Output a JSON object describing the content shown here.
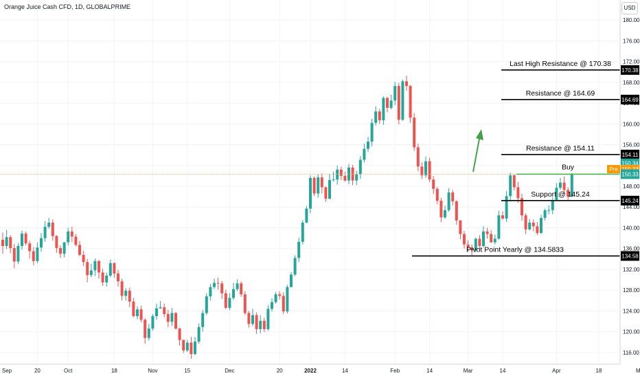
{
  "title": "Orange Juice Cash CFD, 1D, GLOBALPRIME",
  "currency": "USD",
  "colors": {
    "up": "#26a69a",
    "down": "#ef5350",
    "grid": "#f0f3fa",
    "axis_text": "#131722",
    "price_line": "#f7b27a",
    "buy_line": "#4caf50",
    "arrow": "#43a047",
    "pre_badge": "#ff9800",
    "last_badge": "#26a69a"
  },
  "chart_data": {
    "type": "candlestick",
    "ylim": [
      114.0,
      182.0
    ],
    "x_ticks": [
      {
        "label": "Sep",
        "index": -16
      },
      {
        "label": "20",
        "index": 9
      },
      {
        "label": "Oct",
        "index": 17
      },
      {
        "label": "18",
        "index": 29
      },
      {
        "label": "Nov",
        "index": 39
      },
      {
        "label": "15",
        "index": 48
      },
      {
        "label": "Dec",
        "index": 59
      },
      {
        "label": "20",
        "index": 72
      },
      {
        "label": "2022",
        "index": 80
      },
      {
        "label": "14",
        "index": 89
      },
      {
        "label": "Feb",
        "index": 102
      },
      {
        "label": "14",
        "index": 111
      },
      {
        "label": "Mar",
        "index": 121
      },
      {
        "label": "14",
        "index": 130
      },
      {
        "label": "Apr",
        "index": 144
      },
      {
        "label": "18",
        "index": 155
      },
      {
        "label": "May",
        "index": 166
      }
    ],
    "y_ticks": [
      "116.00",
      "120.00",
      "124.00",
      "128.00",
      "132.00",
      "136.00",
      "140.00",
      "144.00",
      "148.00",
      "152.00",
      "156.00",
      "160.00",
      "164.00",
      "168.00",
      "172.00",
      "176.00",
      "180.00"
    ],
    "candles": [
      [
        137.7,
        136.5,
        139.1,
        135.0
      ],
      [
        136.5,
        138.2,
        139.6,
        135.9
      ],
      [
        138.2,
        136.1,
        138.6,
        135.1
      ],
      [
        136.1,
        133.5,
        136.9,
        132.2
      ],
      [
        133.5,
        136.5,
        137.1,
        133.0
      ],
      [
        136.5,
        138.9,
        139.5,
        135.8
      ],
      [
        138.9,
        137.0,
        139.3,
        136.6
      ],
      [
        137.0,
        135.5,
        137.5,
        134.1
      ],
      [
        135.5,
        133.6,
        136.3,
        132.8
      ],
      [
        133.6,
        136.2,
        137.2,
        133.2
      ],
      [
        136.2,
        138.0,
        139.0,
        135.4
      ],
      [
        138.0,
        140.2,
        141.3,
        137.3
      ],
      [
        140.2,
        141.0,
        141.9,
        139.8
      ],
      [
        141.0,
        138.4,
        141.6,
        137.5
      ],
      [
        138.4,
        136.1,
        138.6,
        135.2
      ],
      [
        136.1,
        135.0,
        136.6,
        134.2
      ],
      [
        135.0,
        137.2,
        137.3,
        134.3
      ],
      [
        137.2,
        139.3,
        140.0,
        136.6
      ],
      [
        139.3,
        138.3,
        140.2,
        137.3
      ],
      [
        138.3,
        136.7,
        138.8,
        136.4
      ],
      [
        136.7,
        134.8,
        137.5,
        134.5
      ],
      [
        134.8,
        133.4,
        135.6,
        132.6
      ],
      [
        133.4,
        130.9,
        134.0,
        129.5
      ],
      [
        130.9,
        131.8,
        133.1,
        130.5
      ],
      [
        131.8,
        133.6,
        134.1,
        130.7
      ],
      [
        133.6,
        131.4,
        133.8,
        130.2
      ],
      [
        131.4,
        129.5,
        132.1,
        128.8
      ],
      [
        129.5,
        130.8,
        131.4,
        128.7
      ],
      [
        130.8,
        133.2,
        133.9,
        130.5
      ],
      [
        133.2,
        131.2,
        133.3,
        130.4
      ],
      [
        131.2,
        129.7,
        131.9,
        128.7
      ],
      [
        129.7,
        126.9,
        130.2,
        126.0
      ],
      [
        126.9,
        127.9,
        128.4,
        126.0
      ],
      [
        127.9,
        125.8,
        128.5,
        124.7
      ],
      [
        125.8,
        123.0,
        126.5,
        122.8
      ],
      [
        123.0,
        124.3,
        124.9,
        122.4
      ],
      [
        124.3,
        122.3,
        125.0,
        121.8
      ],
      [
        122.3,
        118.8,
        122.6,
        117.7
      ],
      [
        118.8,
        120.6,
        121.5,
        118.3
      ],
      [
        120.6,
        123.0,
        123.4,
        120.2
      ],
      [
        123.0,
        124.5,
        125.4,
        122.3
      ],
      [
        124.5,
        124.7,
        125.9,
        124.4
      ],
      [
        124.7,
        123.4,
        125.4,
        122.8
      ],
      [
        123.4,
        121.9,
        124.2,
        120.9
      ],
      [
        121.9,
        123.6,
        124.6,
        121.1
      ],
      [
        123.6,
        120.6,
        123.8,
        120.4
      ],
      [
        120.6,
        118.4,
        120.8,
        117.3
      ],
      [
        118.4,
        116.4,
        118.5,
        115.9
      ],
      [
        116.4,
        117.9,
        118.4,
        116.1
      ],
      [
        117.9,
        115.7,
        119.0,
        114.8
      ],
      [
        115.7,
        118.1,
        119.0,
        115.5
      ],
      [
        118.1,
        120.9,
        121.6,
        117.7
      ],
      [
        120.9,
        123.6,
        124.2,
        120.0
      ],
      [
        123.6,
        126.8,
        127.4,
        123.2
      ],
      [
        126.8,
        128.6,
        129.2,
        126.0
      ],
      [
        128.6,
        129.4,
        130.2,
        128.2
      ],
      [
        129.4,
        129.3,
        130.4,
        128.1
      ],
      [
        129.3,
        127.4,
        129.8,
        126.3
      ],
      [
        127.4,
        124.6,
        128.1,
        124.3
      ],
      [
        124.6,
        126.5,
        127.4,
        124.1
      ],
      [
        126.5,
        128.2,
        129.4,
        126.1
      ],
      [
        128.2,
        129.3,
        130.1,
        127.8
      ],
      [
        129.3,
        127.2,
        129.7,
        126.7
      ],
      [
        127.2,
        123.6,
        127.8,
        123.2
      ],
      [
        123.6,
        121.5,
        124.0,
        120.8
      ],
      [
        121.5,
        123.2,
        124.4,
        121.1
      ],
      [
        123.2,
        120.5,
        123.7,
        119.6
      ],
      [
        120.5,
        122.1,
        123.2,
        119.7
      ],
      [
        122.1,
        120.5,
        122.7,
        119.9
      ],
      [
        120.5,
        124.4,
        125.1,
        120.2
      ],
      [
        124.4,
        125.7,
        126.4,
        123.9
      ],
      [
        125.7,
        127.2,
        127.7,
        125.4
      ],
      [
        127.2,
        126.9,
        127.8,
        126.2
      ],
      [
        126.9,
        123.9,
        127.6,
        123.4
      ],
      [
        123.9,
        128.6,
        129.0,
        123.5
      ],
      [
        128.6,
        131.0,
        131.5,
        128.5
      ],
      [
        131.0,
        134.2,
        134.7,
        130.7
      ],
      [
        134.2,
        137.3,
        138.1,
        133.4
      ],
      [
        137.3,
        141.0,
        141.5,
        136.8
      ],
      [
        141.0,
        143.7,
        144.2,
        140.9
      ],
      [
        143.7,
        149.6,
        150.1,
        142.8
      ],
      [
        149.6,
        146.6,
        149.9,
        146.1
      ],
      [
        146.6,
        149.7,
        150.3,
        145.8
      ],
      [
        149.7,
        147.8,
        150.5,
        146.6
      ],
      [
        147.8,
        145.6,
        148.0,
        145.0
      ],
      [
        145.6,
        149.2,
        150.4,
        145.5
      ],
      [
        149.2,
        149.3,
        150.8,
        148.9
      ],
      [
        149.3,
        151.2,
        152.0,
        148.3
      ],
      [
        151.2,
        150.0,
        151.8,
        149.2
      ],
      [
        150.0,
        149.1,
        150.8,
        148.9
      ],
      [
        149.1,
        151.6,
        152.3,
        148.4
      ],
      [
        151.6,
        149.1,
        152.1,
        148.2
      ],
      [
        149.1,
        150.3,
        151.0,
        148.2
      ],
      [
        150.3,
        153.1,
        153.8,
        149.4
      ],
      [
        153.1,
        155.2,
        156.2,
        152.6
      ],
      [
        155.2,
        156.6,
        157.5,
        154.6
      ],
      [
        156.6,
        160.2,
        161.0,
        155.7
      ],
      [
        160.2,
        162.4,
        163.4,
        159.7
      ],
      [
        162.4,
        160.7,
        162.9,
        160.0
      ],
      [
        160.7,
        165.0,
        165.3,
        159.8
      ],
      [
        165.0,
        163.1,
        165.2,
        162.2
      ],
      [
        163.1,
        164.5,
        165.6,
        162.8
      ],
      [
        164.5,
        167.3,
        168.1,
        163.6
      ],
      [
        167.3,
        160.8,
        167.9,
        159.9
      ],
      [
        160.8,
        168.2,
        168.5,
        160.6
      ],
      [
        168.2,
        167.3,
        169.3,
        166.4
      ],
      [
        167.3,
        161.2,
        167.5,
        160.2
      ],
      [
        161.2,
        155.5,
        162.1,
        154.8
      ],
      [
        155.5,
        151.8,
        156.2,
        150.9
      ],
      [
        151.8,
        150.1,
        152.6,
        149.4
      ],
      [
        150.1,
        152.8,
        153.7,
        149.6
      ],
      [
        152.8,
        149.3,
        153.5,
        148.8
      ],
      [
        149.3,
        147.5,
        150.0,
        146.5
      ],
      [
        147.5,
        145.2,
        147.9,
        144.5
      ],
      [
        145.2,
        142.0,
        145.8,
        141.1
      ],
      [
        142.0,
        143.4,
        144.3,
        141.7
      ],
      [
        143.4,
        146.8,
        147.6,
        143.1
      ],
      [
        146.8,
        145.1,
        147.3,
        144.3
      ],
      [
        145.1,
        141.4,
        145.3,
        140.6
      ],
      [
        141.4,
        138.8,
        141.5,
        137.8
      ],
      [
        138.8,
        136.8,
        139.4,
        136.0
      ],
      [
        136.8,
        136.2,
        137.6,
        135.4
      ],
      [
        136.2,
        135.7,
        136.8,
        134.7
      ],
      [
        135.7,
        137.9,
        138.1,
        135.3
      ],
      [
        137.9,
        136.5,
        138.6,
        136.0
      ],
      [
        136.5,
        139.3,
        140.3,
        136.2
      ],
      [
        139.3,
        138.8,
        140.0,
        137.9
      ],
      [
        138.8,
        137.2,
        139.6,
        137.1
      ],
      [
        137.2,
        137.9,
        138.7,
        136.8
      ],
      [
        137.9,
        142.4,
        143.3,
        137.7
      ],
      [
        142.4,
        141.8,
        143.2,
        141.5
      ],
      [
        141.8,
        146.1,
        147.1,
        141.1
      ],
      [
        146.1,
        150.1,
        150.6,
        145.1
      ],
      [
        150.1,
        147.8,
        150.3,
        147.2
      ],
      [
        147.8,
        145.7,
        148.8,
        144.8
      ],
      [
        145.7,
        142.4,
        146.6,
        141.4
      ],
      [
        142.4,
        139.7,
        142.8,
        138.8
      ],
      [
        139.7,
        141.0,
        141.7,
        139.5
      ],
      [
        141.0,
        140.3,
        141.6,
        139.3
      ],
      [
        140.3,
        139.0,
        141.1,
        138.6
      ],
      [
        139.0,
        141.9,
        142.5,
        138.8
      ],
      [
        141.9,
        143.4,
        143.7,
        141.4
      ],
      [
        143.4,
        143.4,
        144.3,
        142.6
      ],
      [
        143.4,
        145.3,
        145.9,
        142.6
      ],
      [
        145.3,
        147.7,
        148.6,
        145.2
      ],
      [
        147.7,
        148.7,
        149.6,
        147.3
      ],
      [
        148.7,
        147.3,
        149.9,
        146.5
      ],
      [
        147.3,
        146.0,
        147.8,
        145.2
      ],
      [
        146.0,
        150.3,
        150.5,
        145.9
      ]
    ],
    "levels": [
      {
        "label": "Last High Resistance @ 170.38",
        "value": 170.38,
        "tag": "170.38"
      },
      {
        "label": "Resistance @ 164.69",
        "value": 164.69,
        "tag": "164.69"
      },
      {
        "label": "Resistance @ 154.11",
        "value": 154.11,
        "tag": "154.11"
      },
      {
        "label": "Support @ 145.24",
        "value": 145.24,
        "tag": "145.24"
      },
      {
        "label": "Pivot Point Yearly @ 134.5833",
        "value": 134.58,
        "tag": "134.58"
      }
    ],
    "buy": {
      "label": "Buy",
      "value": 150.33
    },
    "badges": {
      "high": "150.34",
      "pre_label": "Pre",
      "pre_value": "150.33",
      "last": "150.33"
    }
  }
}
